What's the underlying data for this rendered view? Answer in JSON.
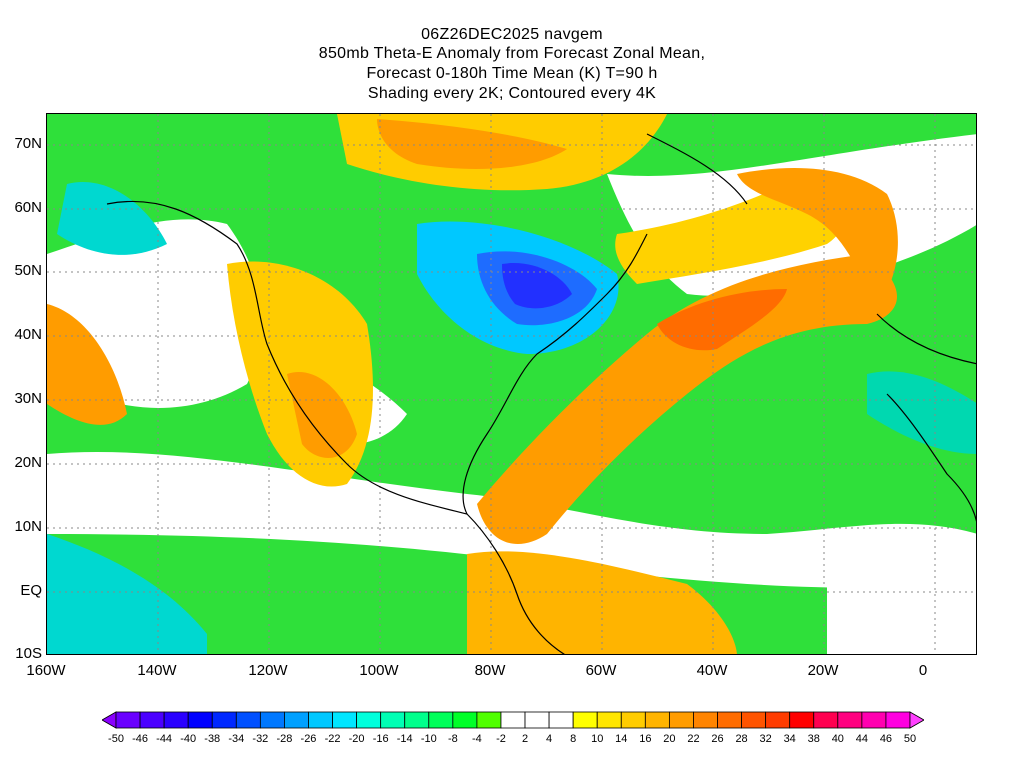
{
  "header": {
    "lines": [
      "06Z26DEC2025 navgem",
      "850mb Theta-E Anomaly from Forecast Zonal Mean,",
      "Forecast 0-180h Time Mean (K) T=90 h",
      "Shading every 2K; Contoured every 4K"
    ]
  },
  "axes": {
    "lat_labels": [
      "70N",
      "60N",
      "50N",
      "40N",
      "30N",
      "20N",
      "10N",
      "EQ",
      "10S"
    ],
    "lon_labels": [
      "160W",
      "140W",
      "120W",
      "100W",
      "80W",
      "60W",
      "40W",
      "20W",
      "0"
    ]
  },
  "colorbar": {
    "labels": [
      "-50",
      "-46",
      "-44",
      "-40",
      "-38",
      "-34",
      "-32",
      "-28",
      "-26",
      "-22",
      "-20",
      "-16",
      "-14",
      "-10",
      "-8",
      "-4",
      "-2",
      "2",
      "4",
      "8",
      "10",
      "14",
      "16",
      "20",
      "22",
      "26",
      "28",
      "32",
      "34",
      "38",
      "40",
      "44",
      "46",
      "50"
    ],
    "colors": [
      "#8a00ff",
      "#6a00ff",
      "#4b00ff",
      "#2a00ff",
      "#0000ff",
      "#0028ff",
      "#0050ff",
      "#0078ff",
      "#00a0ff",
      "#00c8ff",
      "#00e6ff",
      "#00ffdc",
      "#00ffb4",
      "#00ff8c",
      "#00ff5a",
      "#00ff28",
      "#50ff00",
      "#ffffff",
      "#ffffff",
      "#ffffff",
      "#ffff00",
      "#ffe600",
      "#ffcc00",
      "#ffb400",
      "#ff9c00",
      "#ff8400",
      "#ff6c00",
      "#ff5400",
      "#ff3c00",
      "#ff0000",
      "#ff0050",
      "#ff0080",
      "#ff00b0",
      "#ff00e0",
      "#ff40ff"
    ]
  }
}
